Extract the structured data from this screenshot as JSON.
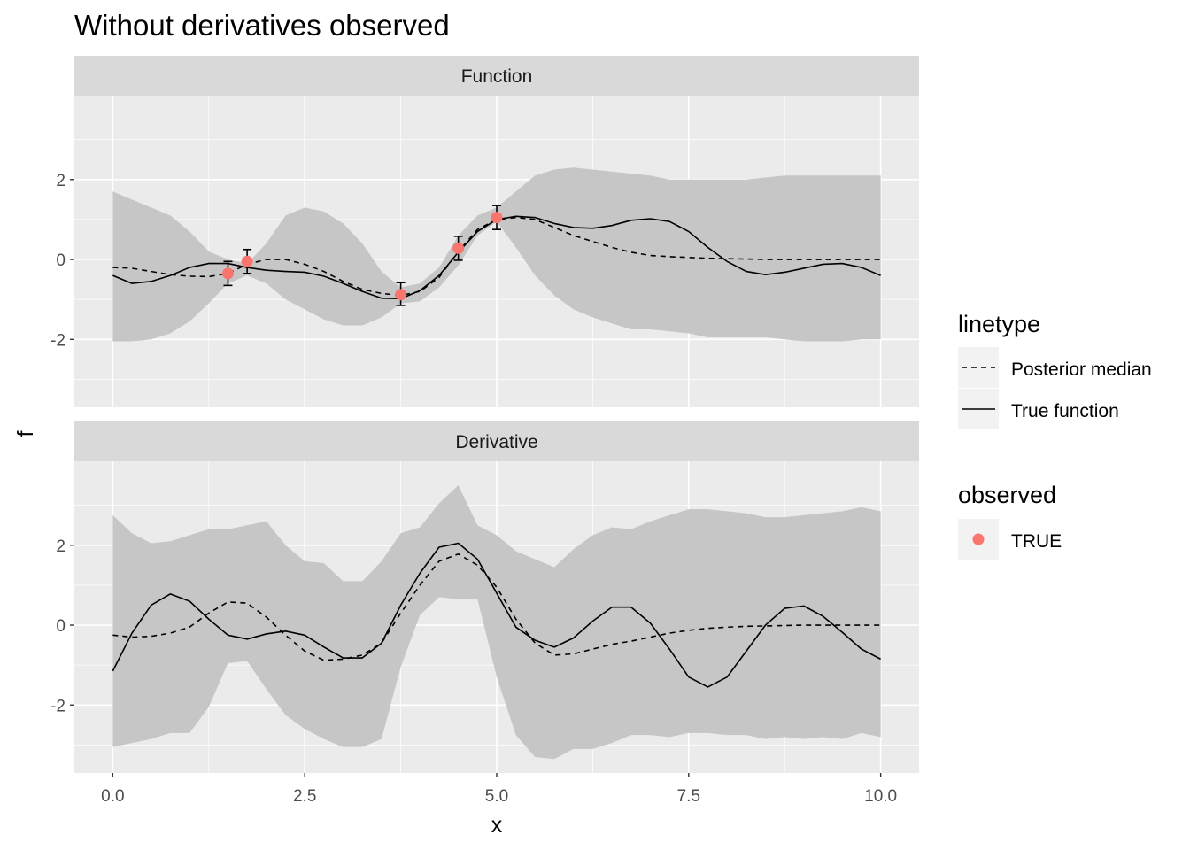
{
  "chart_data": {
    "type": "line",
    "title": "Without derivatives observed",
    "xlabel": "x",
    "ylabel": "f",
    "xlim": [
      -0.5,
      10.5
    ],
    "x_ticks": [
      "0.0",
      "2.5",
      "5.0",
      "7.5",
      "10.0"
    ],
    "x_tick_values": [
      0,
      2.5,
      5,
      7.5,
      10
    ],
    "legend": {
      "placement": "right",
      "linetype_title": "linetype",
      "linetype_entries": [
        "Posterior median",
        "True function"
      ],
      "observed_title": "observed",
      "observed_entries": [
        "TRUE"
      ]
    },
    "colors": {
      "panel_bg": "#ebebeb",
      "strip_bg": "#d9d9d9",
      "ribbon": "#c6c6c6",
      "grid": "#ffffff",
      "point": "#f8766d",
      "line": "#000000"
    },
    "panels": [
      {
        "strip": "Function",
        "ylim": [
          -3.7,
          4.1
        ],
        "y_ticks": [
          "-2",
          "0",
          "2"
        ],
        "y_tick_values": [
          -2,
          0,
          2
        ],
        "x": [
          0,
          0.25,
          0.5,
          0.75,
          1,
          1.25,
          1.5,
          1.75,
          2,
          2.25,
          2.5,
          2.75,
          3,
          3.25,
          3.5,
          3.75,
          4,
          4.25,
          4.5,
          4.75,
          5,
          5.25,
          5.5,
          5.75,
          6,
          6.25,
          6.5,
          6.75,
          7,
          7.25,
          7.5,
          7.75,
          8,
          8.25,
          8.5,
          8.75,
          9,
          9.25,
          9.5,
          9.75,
          10
        ],
        "ribbon_upper": [
          1.7,
          1.5,
          1.3,
          1.1,
          0.7,
          0.2,
          0.0,
          -0.1,
          0.4,
          1.1,
          1.3,
          1.2,
          0.9,
          0.4,
          -0.3,
          -0.7,
          -0.6,
          -0.2,
          0.6,
          1.1,
          1.3,
          1.7,
          2.1,
          2.25,
          2.3,
          2.25,
          2.2,
          2.15,
          2.1,
          2.0,
          2.0,
          2.0,
          2.0,
          2.0,
          2.05,
          2.1,
          2.1,
          2.1,
          2.1,
          2.1,
          2.1
        ],
        "ribbon_lower": [
          -2.05,
          -2.05,
          -2.0,
          -1.85,
          -1.55,
          -1.1,
          -0.6,
          -0.4,
          -0.6,
          -1.0,
          -1.25,
          -1.5,
          -1.65,
          -1.65,
          -1.45,
          -1.1,
          -1.05,
          -0.7,
          -0.15,
          0.6,
          0.95,
          0.3,
          -0.4,
          -0.9,
          -1.25,
          -1.45,
          -1.6,
          -1.75,
          -1.75,
          -1.8,
          -1.85,
          -1.95,
          -1.95,
          -1.95,
          -1.95,
          -2.0,
          -2.05,
          -2.05,
          -2.05,
          -2.0,
          -2.0
        ],
        "series": [
          {
            "name": "Posterior median",
            "linetype": "dashed",
            "values": [
              -0.2,
              -0.22,
              -0.3,
              -0.38,
              -0.42,
              -0.43,
              -0.35,
              -0.12,
              0.0,
              0.0,
              -0.12,
              -0.3,
              -0.55,
              -0.75,
              -0.85,
              -0.9,
              -0.8,
              -0.45,
              0.2,
              0.75,
              1.0,
              1.05,
              1.0,
              0.8,
              0.6,
              0.45,
              0.3,
              0.18,
              0.1,
              0.07,
              0.05,
              0.03,
              0.02,
              0.01,
              0.0,
              0.0,
              0.0,
              0.0,
              0.0,
              0.0,
              0.0
            ]
          },
          {
            "name": "True function",
            "linetype": "solid",
            "values": [
              -0.4,
              -0.6,
              -0.55,
              -0.4,
              -0.2,
              -0.1,
              -0.1,
              -0.2,
              -0.27,
              -0.3,
              -0.32,
              -0.42,
              -0.6,
              -0.8,
              -0.97,
              -0.98,
              -0.78,
              -0.4,
              0.18,
              0.7,
              1.0,
              1.08,
              1.05,
              0.9,
              0.8,
              0.78,
              0.85,
              0.98,
              1.02,
              0.95,
              0.7,
              0.3,
              -0.05,
              -0.3,
              -0.38,
              -0.32,
              -0.22,
              -0.12,
              -0.1,
              -0.2,
              -0.4
            ]
          }
        ],
        "observations": [
          {
            "x": 1.5,
            "y": -0.35,
            "ymin": -0.65,
            "ymax": -0.05
          },
          {
            "x": 1.75,
            "y": -0.05,
            "ymin": -0.35,
            "ymax": 0.25
          },
          {
            "x": 3.75,
            "y": -0.88,
            "ymin": -1.15,
            "ymax": -0.58
          },
          {
            "x": 4.5,
            "y": 0.28,
            "ymin": -0.02,
            "ymax": 0.58
          },
          {
            "x": 5.0,
            "y": 1.05,
            "ymin": 0.75,
            "ymax": 1.35
          }
        ]
      },
      {
        "strip": "Derivative",
        "ylim": [
          -3.7,
          4.1
        ],
        "y_ticks": [
          "-2",
          "0",
          "2"
        ],
        "y_tick_values": [
          -2,
          0,
          2
        ],
        "x": [
          0,
          0.25,
          0.5,
          0.75,
          1,
          1.25,
          1.5,
          1.75,
          2,
          2.25,
          2.5,
          2.75,
          3,
          3.25,
          3.5,
          3.75,
          4,
          4.25,
          4.5,
          4.75,
          5,
          5.25,
          5.5,
          5.75,
          6,
          6.25,
          6.5,
          6.75,
          7,
          7.25,
          7.5,
          7.75,
          8,
          8.25,
          8.5,
          8.75,
          9,
          9.25,
          9.5,
          9.75,
          10
        ],
        "ribbon_upper": [
          2.75,
          2.3,
          2.05,
          2.1,
          2.25,
          2.4,
          2.4,
          2.5,
          2.6,
          2.0,
          1.6,
          1.55,
          1.1,
          1.1,
          1.6,
          2.3,
          2.45,
          3.05,
          3.5,
          2.5,
          2.25,
          1.85,
          1.65,
          1.45,
          1.9,
          2.25,
          2.45,
          2.4,
          2.6,
          2.75,
          2.9,
          2.9,
          2.85,
          2.8,
          2.7,
          2.7,
          2.75,
          2.8,
          2.85,
          2.95,
          2.85
        ],
        "ribbon_lower": [
          -3.05,
          -2.95,
          -2.85,
          -2.7,
          -2.7,
          -2.05,
          -0.95,
          -0.9,
          -1.6,
          -2.25,
          -2.6,
          -2.85,
          -3.05,
          -3.05,
          -2.85,
          -1.05,
          0.25,
          0.7,
          0.65,
          0.65,
          -1.3,
          -2.75,
          -3.3,
          -3.35,
          -3.1,
          -3.1,
          -2.95,
          -2.75,
          -2.75,
          -2.8,
          -2.7,
          -2.7,
          -2.75,
          -2.75,
          -2.85,
          -2.8,
          -2.85,
          -2.8,
          -2.85,
          -2.7,
          -2.8
        ],
        "series": [
          {
            "name": "Posterior median",
            "linetype": "dashed",
            "values": [
              -0.25,
              -0.3,
              -0.28,
              -0.2,
              -0.05,
              0.3,
              0.58,
              0.55,
              0.2,
              -0.25,
              -0.65,
              -0.88,
              -0.85,
              -0.75,
              -0.45,
              0.3,
              1.0,
              1.6,
              1.78,
              1.5,
              0.95,
              0.15,
              -0.45,
              -0.75,
              -0.72,
              -0.6,
              -0.48,
              -0.4,
              -0.3,
              -0.2,
              -0.13,
              -0.08,
              -0.05,
              -0.03,
              -0.02,
              -0.01,
              0.0,
              0.0,
              0.0,
              0.0,
              0.0
            ]
          },
          {
            "name": "True function",
            "linetype": "solid",
            "values": [
              -1.15,
              -0.2,
              0.5,
              0.78,
              0.6,
              0.15,
              -0.25,
              -0.35,
              -0.22,
              -0.15,
              -0.25,
              -0.55,
              -0.82,
              -0.82,
              -0.45,
              0.5,
              1.3,
              1.95,
              2.05,
              1.65,
              0.8,
              -0.05,
              -0.38,
              -0.55,
              -0.32,
              0.1,
              0.45,
              0.45,
              0.05,
              -0.6,
              -1.3,
              -1.55,
              -1.3,
              -0.65,
              0.0,
              0.42,
              0.48,
              0.22,
              -0.18,
              -0.6,
              -0.85
            ]
          }
        ]
      }
    ]
  }
}
